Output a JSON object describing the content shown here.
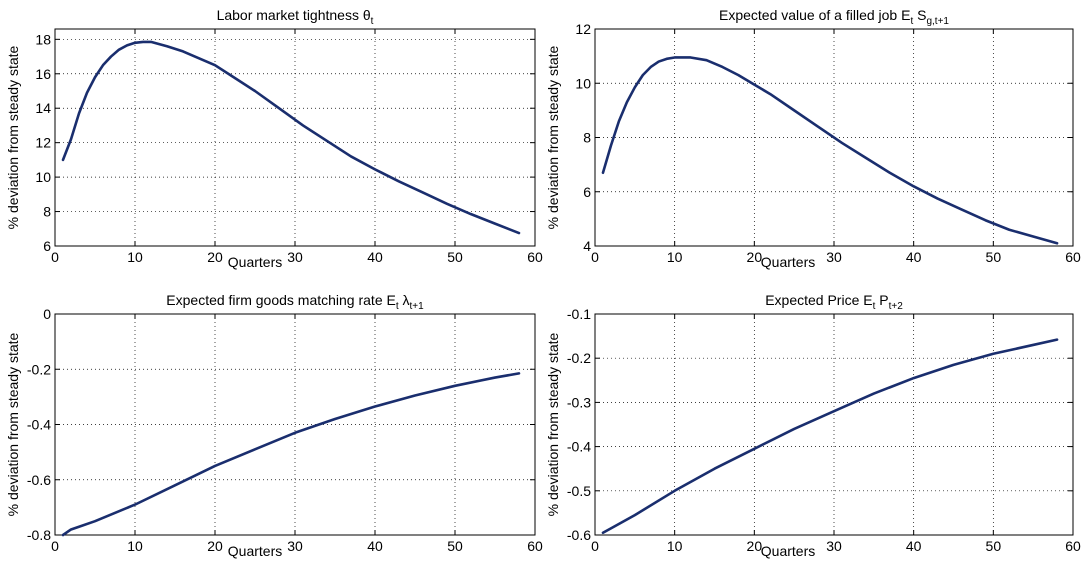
{
  "chart_data": [
    {
      "type": "line",
      "title": "Labor market tightness θ",
      "title_sub": "t",
      "xlabel": "Quarters",
      "ylabel": "% deviation from steady state",
      "xlim": [
        0,
        60
      ],
      "ylim": [
        6,
        18.6
      ],
      "xticks": [
        0,
        10,
        20,
        30,
        40,
        50,
        60
      ],
      "yticks": [
        6,
        8,
        10,
        12,
        14,
        16,
        18
      ],
      "grid": true,
      "series": [
        {
          "color": "#1a2e6e",
          "x": [
            1,
            2,
            3,
            4,
            5,
            6,
            7,
            8,
            9,
            10,
            11,
            12,
            14,
            16,
            18,
            20,
            22,
            25,
            28,
            31,
            34,
            37,
            40,
            43,
            46,
            49,
            52,
            55,
            58
          ],
          "y": [
            11.0,
            12.2,
            13.7,
            14.9,
            15.8,
            16.5,
            17.0,
            17.4,
            17.65,
            17.8,
            17.85,
            17.85,
            17.6,
            17.3,
            16.9,
            16.5,
            15.9,
            15.0,
            14.0,
            13.0,
            12.1,
            11.2,
            10.45,
            9.75,
            9.1,
            8.45,
            7.85,
            7.3,
            6.75
          ]
        }
      ]
    },
    {
      "type": "line",
      "title": "Expected value of a filled job E",
      "title_sub": "t",
      "title_mid": " S",
      "title_sub2": "g,t+1",
      "xlabel": "Quarters",
      "ylabel": "% deviation from steady state",
      "xlim": [
        0,
        60
      ],
      "ylim": [
        4,
        12
      ],
      "xticks": [
        0,
        10,
        20,
        30,
        40,
        50,
        60
      ],
      "yticks": [
        4,
        6,
        8,
        10,
        12
      ],
      "grid": true,
      "series": [
        {
          "color": "#1a2e6e",
          "x": [
            1,
            2,
            3,
            4,
            5,
            6,
            7,
            8,
            9,
            10,
            11,
            12,
            14,
            16,
            18,
            20,
            22,
            25,
            28,
            31,
            34,
            37,
            40,
            43,
            46,
            49,
            52,
            55,
            58
          ],
          "y": [
            6.7,
            7.7,
            8.6,
            9.3,
            9.85,
            10.3,
            10.6,
            10.8,
            10.9,
            10.95,
            10.95,
            10.95,
            10.85,
            10.6,
            10.3,
            9.95,
            9.6,
            9.0,
            8.4,
            7.8,
            7.25,
            6.7,
            6.2,
            5.75,
            5.35,
            4.95,
            4.6,
            4.35,
            4.1
          ]
        }
      ]
    },
    {
      "type": "line",
      "title": "Expected firm goods matching rate E",
      "title_sub": "t",
      "title_mid": " λ",
      "title_sub2": "t+1",
      "xlabel": "Quarters",
      "ylabel": "% deviation from steady state",
      "xlim": [
        0,
        60
      ],
      "ylim": [
        -0.8,
        0
      ],
      "xticks": [
        0,
        10,
        20,
        30,
        40,
        50,
        60
      ],
      "yticks": [
        -0.8,
        -0.6,
        -0.4,
        -0.2,
        0
      ],
      "grid": true,
      "series": [
        {
          "color": "#1a2e6e",
          "x": [
            1,
            2,
            3,
            5,
            10,
            15,
            20,
            25,
            30,
            35,
            40,
            45,
            50,
            55,
            58
          ],
          "y": [
            -0.8,
            -0.78,
            -0.77,
            -0.75,
            -0.69,
            -0.62,
            -0.55,
            -0.49,
            -0.43,
            -0.38,
            -0.335,
            -0.295,
            -0.26,
            -0.23,
            -0.215
          ]
        }
      ]
    },
    {
      "type": "line",
      "title": "Expected Price E",
      "title_sub": "t",
      "title_mid": " P",
      "title_sub2": "t+2",
      "xlabel": "Quarters",
      "ylabel": "% deviation from steady state",
      "xlim": [
        0,
        60
      ],
      "ylim": [
        -0.6,
        -0.1
      ],
      "xticks": [
        0,
        10,
        20,
        30,
        40,
        50,
        60
      ],
      "yticks": [
        -0.6,
        -0.5,
        -0.4,
        -0.3,
        -0.2,
        -0.1
      ],
      "grid": true,
      "series": [
        {
          "color": "#1a2e6e",
          "x": [
            1,
            2,
            5,
            10,
            15,
            20,
            25,
            30,
            35,
            40,
            45,
            50,
            55,
            58
          ],
          "y": [
            -0.595,
            -0.585,
            -0.555,
            -0.5,
            -0.45,
            -0.405,
            -0.36,
            -0.32,
            -0.28,
            -0.245,
            -0.215,
            -0.19,
            -0.17,
            -0.158
          ]
        }
      ]
    }
  ]
}
